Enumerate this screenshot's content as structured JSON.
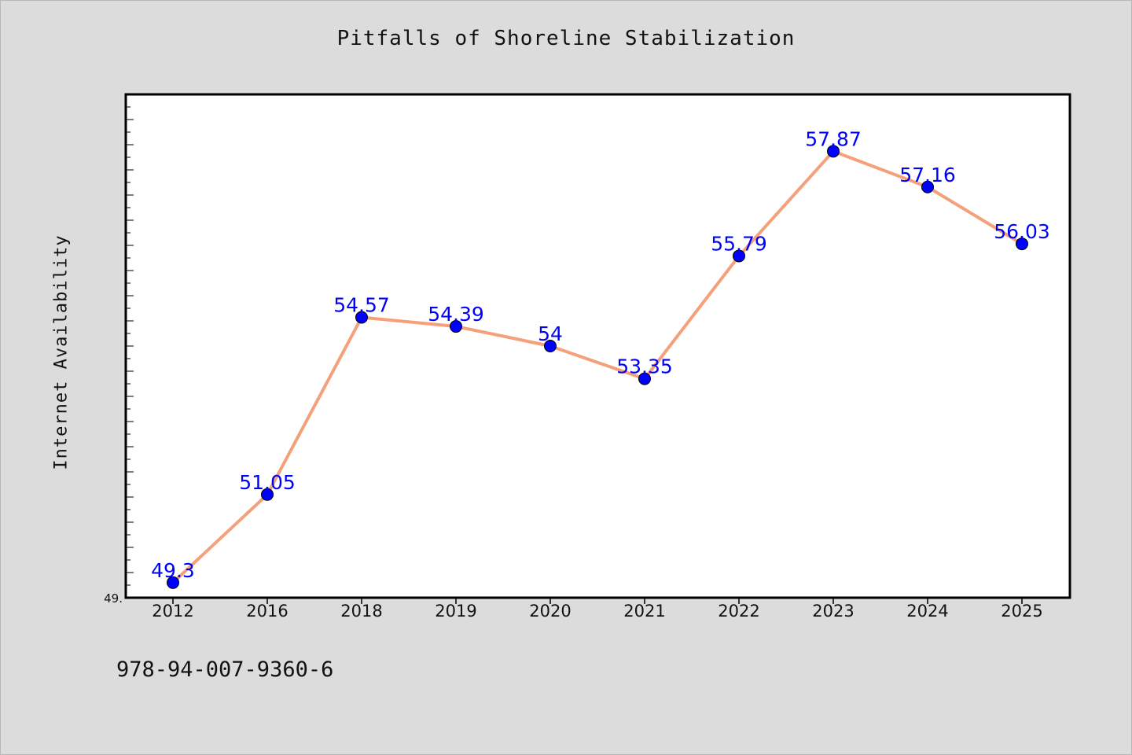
{
  "chart_data": {
    "type": "line",
    "title": "Pitfalls of Shoreline Stabilization",
    "xlabel": "",
    "ylabel": "Internet Availability",
    "categories": [
      "2012",
      "2016",
      "2018",
      "2019",
      "2020",
      "2021",
      "2022",
      "2023",
      "2024",
      "2025"
    ],
    "series": [
      {
        "values": [
          49.3,
          51.05,
          54.57,
          54.39,
          54.0,
          53.35,
          55.79,
          57.87,
          57.16,
          56.03
        ],
        "labels": [
          "49.3",
          "51.05",
          "54.57",
          "54.39",
          "54",
          "53.35",
          "55.79",
          "57.87",
          "57.16",
          "56.03"
        ]
      }
    ],
    "ylim": [
      49.0,
      59.0
    ],
    "y_tick_label_visible": "49.",
    "grid": false,
    "legend": "none",
    "colors": {
      "line": "#f4a07a",
      "marker": "#0000ff",
      "data_label": "#0000ff",
      "background": "#dcdcdc",
      "plot_bg": "#ffffff"
    }
  },
  "footer": {
    "isbn": "978-94-007-9360-6"
  }
}
